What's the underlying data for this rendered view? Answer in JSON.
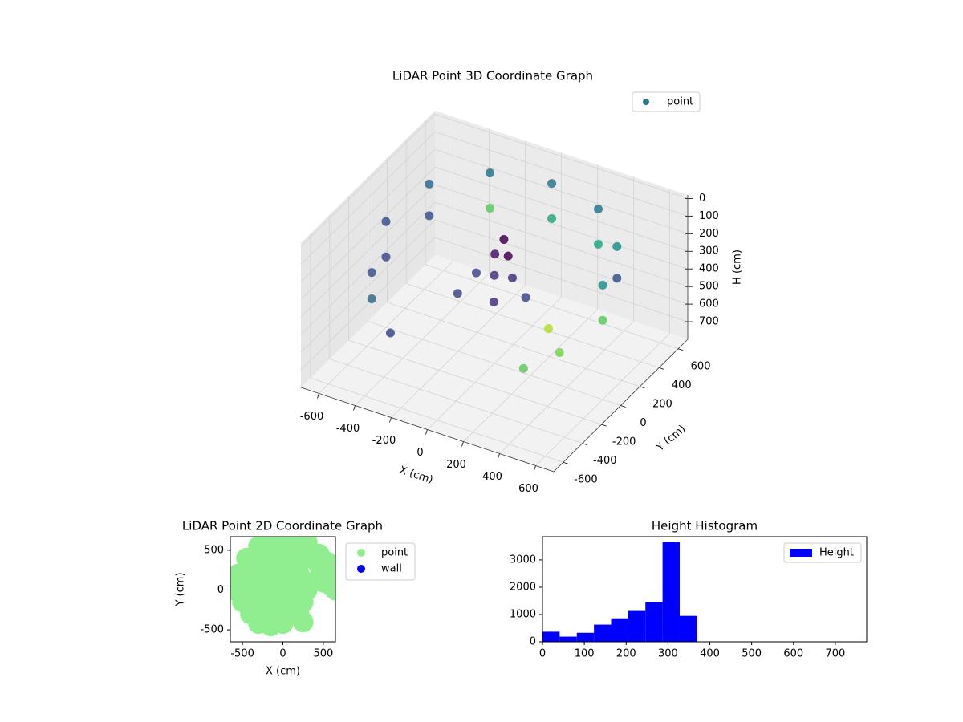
{
  "chart_data": [
    {
      "type": "scatter3d",
      "title": "LiDAR Point 3D Coordinate Graph",
      "xlabel": "X (cm)",
      "ylabel": "Y (cm)",
      "zlabel": "H (cm)",
      "xlim": [
        -700,
        700
      ],
      "ylim": [
        -700,
        700
      ],
      "zlim": [
        -20,
        800
      ],
      "zinvert": true,
      "xticks": [
        -600,
        -400,
        -200,
        0,
        200,
        400,
        600
      ],
      "yticks": [
        -600,
        -400,
        -200,
        0,
        200,
        400,
        600
      ],
      "zticks": [
        0,
        100,
        200,
        300,
        400,
        500,
        600,
        700
      ],
      "grid": true,
      "legend": "upper right",
      "series": [
        {
          "name": "point",
          "color": "#2a788e",
          "x": [
            600,
            600,
            520,
            520,
            300,
            300,
            0,
            0,
            -300,
            -300,
            -520,
            -520,
            -600,
            -600,
            -520,
            -520,
            -300,
            520,
            400,
            300,
            0,
            50,
            -50,
            0,
            100,
            -100,
            50,
            -150,
            200
          ],
          "y": [
            0,
            0,
            300,
            300,
            520,
            520,
            600,
            600,
            520,
            520,
            300,
            300,
            0,
            0,
            -300,
            -300,
            -520,
            -300,
            -450,
            0,
            100,
            50,
            100,
            0,
            0,
            0,
            -100,
            -100,
            -50
          ],
          "z": [
            150,
            350,
            120,
            300,
            100,
            300,
            100,
            300,
            100,
            300,
            120,
            300,
            200,
            400,
            300,
            450,
            450,
            400,
            450,
            500,
            150,
            200,
            250,
            300,
            280,
            320,
            380,
            400,
            330
          ],
          "colors": [
            "#21918c",
            "#5ec962",
            "#21918c",
            "#3b528b",
            "#2a788e",
            "#22a884",
            "#2a788e",
            "#22a884",
            "#2a788e",
            "#5ec962",
            "#31688e",
            "#3b528b",
            "#3b528b",
            "#3e4a89",
            "#3b528b",
            "#31688e",
            "#3e4a89",
            "#7ad151",
            "#5ec962",
            "#b5de2b",
            "#440154",
            "#440154",
            "#481668",
            "#46327e",
            "#46327e",
            "#3e4a89",
            "#46327e",
            "#3e4a89",
            "#3e4a89"
          ]
        }
      ]
    },
    {
      "type": "scatter",
      "title": "LiDAR Point 2D Coordinate Graph",
      "xlabel": "X (cm)",
      "ylabel": "Y (cm)",
      "xlim": [
        -650,
        650
      ],
      "ylim": [
        -650,
        670
      ],
      "xticks": [
        -500,
        0,
        500
      ],
      "yticks": [
        -500,
        0,
        500
      ],
      "legend": "outside right",
      "series": [
        {
          "name": "point",
          "color": "#90ee90",
          "x": [
            -300,
            -150,
            0,
            150,
            300,
            -450,
            -300,
            -150,
            0,
            150,
            300,
            450,
            550,
            600,
            600,
            500,
            450,
            650,
            650,
            -550,
            -400,
            -250,
            -100,
            50,
            200,
            300,
            -600,
            -450,
            -300,
            -150,
            0,
            150,
            300,
            -500,
            -350,
            -200,
            -50,
            100,
            250,
            -400,
            -250,
            -100,
            50,
            200,
            250,
            -300,
            -150,
            0
          ],
          "y": [
            550,
            600,
            600,
            620,
            600,
            400,
            400,
            400,
            400,
            400,
            400,
            450,
            350,
            200,
            50,
            100,
            300,
            0,
            150,
            200,
            200,
            200,
            200,
            200,
            200,
            100,
            0,
            0,
            0,
            0,
            0,
            0,
            0,
            -150,
            -150,
            -150,
            -150,
            -150,
            -150,
            -300,
            -300,
            -300,
            -300,
            -300,
            -400,
            -420,
            -450,
            -420
          ]
        },
        {
          "name": "wall",
          "color": "#0000ff",
          "x": [],
          "y": []
        }
      ]
    },
    {
      "type": "histogram",
      "title": "Height Histogram",
      "bins": [
        0,
        41,
        82,
        123,
        164,
        205,
        246,
        287,
        328,
        369,
        410,
        451,
        492,
        533,
        574,
        615,
        656,
        697,
        738
      ],
      "values": [
        370,
        190,
        330,
        630,
        860,
        1130,
        1450,
        3650,
        950,
        0,
        0,
        0,
        0,
        0,
        0,
        0,
        0,
        0
      ],
      "name": "Height",
      "color": "#0000ff",
      "legend": "upper right",
      "xlim": [
        0,
        775
      ],
      "ylim": [
        0,
        3850
      ],
      "xticks": [
        0,
        100,
        200,
        300,
        400,
        500,
        600,
        700
      ],
      "yticks": [
        0,
        1000,
        2000,
        3000
      ]
    }
  ]
}
